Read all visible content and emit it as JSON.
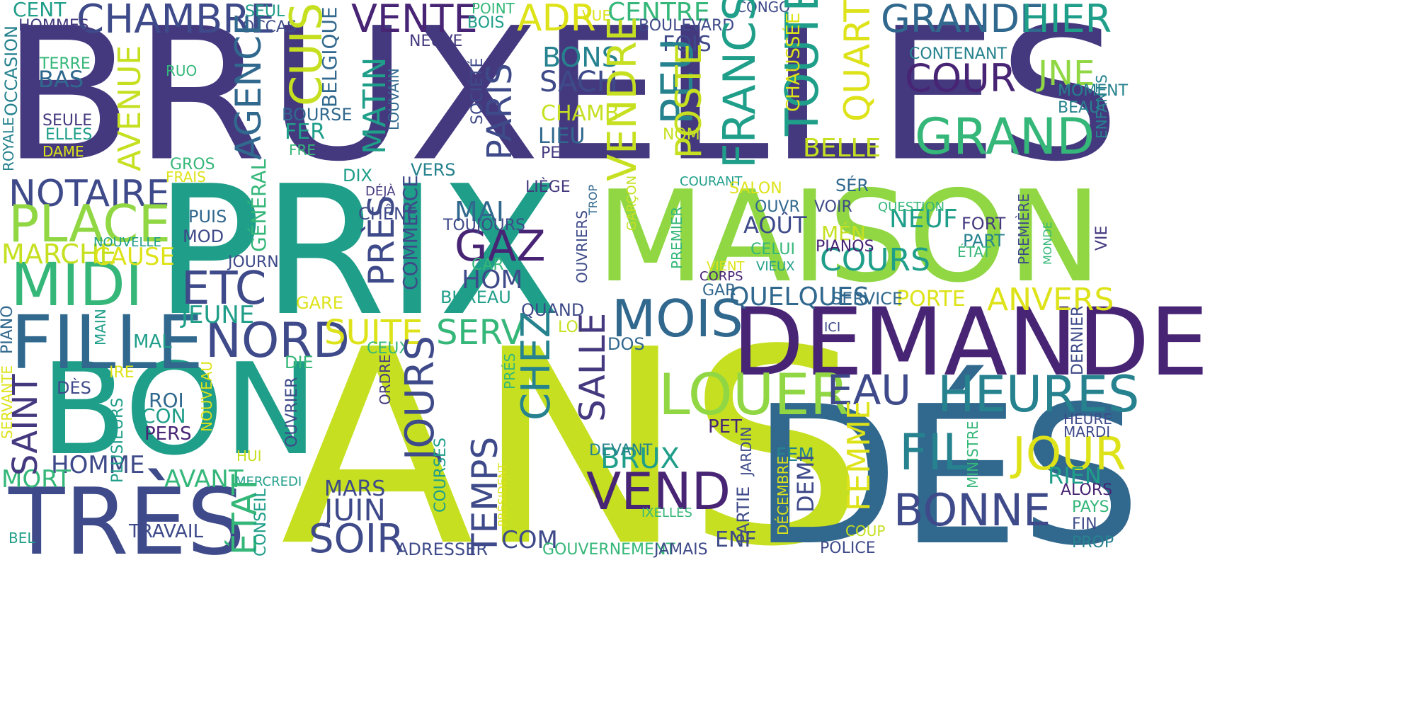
{
  "palette": {
    "indigo": "#44397f",
    "navy": "#3e4a89",
    "blue": "#31688e",
    "teal": "#26828e",
    "sea": "#1f9e89",
    "green": "#35b779",
    "lime": "#90d743",
    "yellow": "#c6e021",
    "gold": "#dde318",
    "purple": "#482475",
    "background": "#ffffff"
  },
  "words": [
    {
      "text": "BRUXELLES",
      "color": "indigo"
    },
    {
      "text": "PRIX",
      "color": "sea"
    },
    {
      "text": "ANS",
      "color": "yellow"
    },
    {
      "text": "MAISON",
      "color": "lime"
    },
    {
      "text": "DÉS",
      "color": "blue"
    },
    {
      "text": "DEMANDE",
      "color": "purple"
    },
    {
      "text": "BON",
      "color": "sea"
    },
    {
      "text": "TRÈS",
      "color": "navy"
    },
    {
      "text": "FILLE",
      "color": "blue"
    },
    {
      "text": "MIDI",
      "color": "green"
    },
    {
      "text": "NOTAIRE",
      "color": "navy"
    },
    {
      "text": "PLACE",
      "color": "lime"
    },
    {
      "text": "CHAMBRE",
      "color": "navy"
    },
    {
      "text": "VENTE",
      "color": "purple"
    },
    {
      "text": "GRANDE",
      "color": "blue"
    },
    {
      "text": "HIER",
      "color": "sea"
    },
    {
      "text": "GRAND",
      "color": "green"
    },
    {
      "text": "COUR",
      "color": "purple"
    },
    {
      "text": "JNE",
      "color": "lime"
    },
    {
      "text": "LOUER",
      "color": "lime"
    },
    {
      "text": "HEURES",
      "color": "teal"
    },
    {
      "text": "BONNE",
      "color": "navy"
    },
    {
      "text": "JOUR",
      "color": "gold"
    },
    {
      "text": "FIL",
      "color": "teal"
    },
    {
      "text": "VEND",
      "color": "purple"
    },
    {
      "text": "MOIS",
      "color": "blue"
    },
    {
      "text": "NORD",
      "color": "navy"
    },
    {
      "text": "SUITE",
      "color": "gold"
    },
    {
      "text": "SERV",
      "color": "green"
    },
    {
      "text": "GAZ",
      "color": "purple"
    },
    {
      "text": "ETC",
      "color": "navy"
    },
    {
      "text": "EAU",
      "color": "navy"
    },
    {
      "text": "SOIR",
      "color": "navy"
    },
    {
      "text": "JUIN",
      "color": "navy"
    },
    {
      "text": "ANVERS",
      "color": "gold"
    },
    {
      "text": "QUELQUES",
      "color": "blue"
    },
    {
      "text": "ADR",
      "color": "gold"
    },
    {
      "text": "CENTRE",
      "color": "green"
    },
    {
      "text": "MARCHÉ",
      "color": "yellow"
    },
    {
      "text": "CAUSE",
      "color": "gold"
    },
    {
      "text": "JEUNE",
      "color": "sea"
    },
    {
      "text": "HOMME",
      "color": "navy"
    },
    {
      "text": "MORT",
      "color": "green"
    },
    {
      "text": "AVANT",
      "color": "green"
    },
    {
      "text": "MARS",
      "color": "navy"
    },
    {
      "text": "COM",
      "color": "navy"
    },
    {
      "text": "BRUX",
      "color": "sea"
    },
    {
      "text": "COURS",
      "color": "sea"
    },
    {
      "text": "NEUF",
      "color": "sea"
    },
    {
      "text": "AOÛT",
      "color": "navy"
    },
    {
      "text": "HOM",
      "color": "navy"
    },
    {
      "text": "MAI",
      "color": "blue"
    },
    {
      "text": "BONS",
      "color": "teal"
    },
    {
      "text": "SACH",
      "color": "navy"
    },
    {
      "text": "BELLE",
      "color": "yellow"
    },
    {
      "text": "RIEN",
      "color": "sea"
    },
    {
      "text": "PORTE",
      "color": "gold"
    },
    {
      "text": "SERVICE",
      "color": "blue"
    },
    {
      "text": "CENT",
      "color": "sea"
    },
    {
      "text": "HOMMES",
      "color": "indigo"
    },
    {
      "text": "SEUL",
      "color": "sea"
    },
    {
      "text": "OCCAS",
      "color": "navy"
    },
    {
      "text": "POINT",
      "color": "green"
    },
    {
      "text": "BOIS",
      "color": "sea"
    },
    {
      "text": "VUE",
      "color": "gold"
    },
    {
      "text": "CONGO",
      "color": "navy"
    },
    {
      "text": "BOULEVARD",
      "color": "navy"
    },
    {
      "text": "FOIS",
      "color": "navy"
    },
    {
      "text": "NEUVE",
      "color": "indigo"
    },
    {
      "text": "TERRE",
      "color": "green"
    },
    {
      "text": "BAS",
      "color": "blue"
    },
    {
      "text": "RUO",
      "color": "green"
    },
    {
      "text": "SEULE",
      "color": "indigo"
    },
    {
      "text": "ELLES",
      "color": "sea"
    },
    {
      "text": "DAME",
      "color": "gold"
    },
    {
      "text": "BOURSE",
      "color": "blue"
    },
    {
      "text": "FER",
      "color": "sea"
    },
    {
      "text": "FRE",
      "color": "green"
    },
    {
      "text": "GROS",
      "color": "green"
    },
    {
      "text": "FRAIS",
      "color": "gold"
    },
    {
      "text": "DIX",
      "color": "sea"
    },
    {
      "text": "VERS",
      "color": "teal"
    },
    {
      "text": "DÉJÀ",
      "color": "indigo"
    },
    {
      "text": "LIÈGE",
      "color": "indigo"
    },
    {
      "text": "CHAMB",
      "color": "yellow"
    },
    {
      "text": "LIEU",
      "color": "blue"
    },
    {
      "text": "PETITE",
      "color": "indigo"
    },
    {
      "text": "NOM",
      "color": "yellow"
    },
    {
      "text": "CONTENANT",
      "color": "teal"
    },
    {
      "text": "MOMENT",
      "color": "teal"
    },
    {
      "text": "BEAU",
      "color": "teal"
    },
    {
      "text": "COURANT",
      "color": "sea"
    },
    {
      "text": "SALON",
      "color": "gold"
    },
    {
      "text": "SÉR",
      "color": "blue"
    },
    {
      "text": "OUVR",
      "color": "blue"
    },
    {
      "text": "VOIR",
      "color": "navy"
    },
    {
      "text": "QUESTION",
      "color": "green"
    },
    {
      "text": "FORT",
      "color": "indigo"
    },
    {
      "text": "PART",
      "color": "teal"
    },
    {
      "text": "ÉTAT",
      "color": "green"
    },
    {
      "text": "MÉN",
      "color": "yellow"
    },
    {
      "text": "CELUI",
      "color": "green"
    },
    {
      "text": "PIANOS",
      "color": "purple"
    },
    {
      "text": "VIEUX",
      "color": "sea"
    },
    {
      "text": "CORPS",
      "color": "purple"
    },
    {
      "text": "VIENT",
      "color": "gold"
    },
    {
      "text": "GAR",
      "color": "blue"
    },
    {
      "text": "PUIS",
      "color": "blue"
    },
    {
      "text": "MOD",
      "color": "navy"
    },
    {
      "text": "NOUVELLE",
      "color": "sea"
    },
    {
      "text": "JOURN",
      "color": "navy"
    },
    {
      "text": "CHÊNE",
      "color": "navy"
    },
    {
      "text": "TOUJOURS",
      "color": "navy"
    },
    {
      "text": "CAR",
      "color": "green"
    },
    {
      "text": "BUREAU",
      "color": "sea"
    },
    {
      "text": "QUAND",
      "color": "navy"
    },
    {
      "text": "LOI",
      "color": "yellow"
    },
    {
      "text": "DOS",
      "color": "blue"
    },
    {
      "text": "GARE",
      "color": "gold"
    },
    {
      "text": "MAL",
      "color": "sea"
    },
    {
      "text": "CEUX",
      "color": "green"
    },
    {
      "text": "DIE",
      "color": "green"
    },
    {
      "text": "IRE",
      "color": "gold"
    },
    {
      "text": "DÈS",
      "color": "navy"
    },
    {
      "text": "ROI",
      "color": "blue"
    },
    {
      "text": "CON",
      "color": "sea"
    },
    {
      "text": "PERS",
      "color": "purple"
    },
    {
      "text": "HUI",
      "color": "yellow"
    },
    {
      "text": "MERCREDI",
      "color": "sea"
    },
    {
      "text": "TRAVAIL",
      "color": "navy"
    },
    {
      "text": "BEL",
      "color": "sea"
    },
    {
      "text": "ADRESSER",
      "color": "navy"
    },
    {
      "text": "GOUVERNEMENT",
      "color": "green"
    },
    {
      "text": "JAMAIS",
      "color": "navy"
    },
    {
      "text": "ENF",
      "color": "navy"
    },
    {
      "text": "POLICE",
      "color": "navy"
    },
    {
      "text": "DEVANT",
      "color": "teal"
    },
    {
      "text": "PET",
      "color": "purple"
    },
    {
      "text": "FEM",
      "color": "teal"
    },
    {
      "text": "COUP",
      "color": "yellow"
    },
    {
      "text": "ICI",
      "color": "navy"
    },
    {
      "text": "HEURE",
      "color": "navy"
    },
    {
      "text": "MARDI",
      "color": "navy"
    },
    {
      "text": "ALORS",
      "color": "purple"
    },
    {
      "text": "PAYS",
      "color": "green"
    },
    {
      "text": "FIN",
      "color": "navy"
    },
    {
      "text": "PROP",
      "color": "teal"
    },
    {
      "text": "IXELLES",
      "color": "green"
    },
    {
      "text": "OCCASION",
      "color": "teal"
    },
    {
      "text": "ROYALE",
      "color": "teal"
    },
    {
      "text": "AVENUE",
      "color": "yellow"
    },
    {
      "text": "CUIS",
      "color": "yellow"
    },
    {
      "text": "BELGIQUE",
      "color": "blue"
    },
    {
      "text": "AGENCE",
      "color": "blue"
    },
    {
      "text": "MATIN",
      "color": "sea"
    },
    {
      "text": "LOUVAIN",
      "color": "blue"
    },
    {
      "text": "SOCIÉTÉ",
      "color": "navy"
    },
    {
      "text": "PARIS",
      "color": "navy"
    },
    {
      "text": "VENDRE",
      "color": "yellow"
    },
    {
      "text": "PEU",
      "color": "teal"
    },
    {
      "text": "POSTE",
      "color": "yellow"
    },
    {
      "text": "FRANCS",
      "color": "sea"
    },
    {
      "text": "TOUTE",
      "color": "sea"
    },
    {
      "text": "CHAUSSÉE",
      "color": "gold"
    },
    {
      "text": "QUART",
      "color": "gold"
    },
    {
      "text": "ENFANTS",
      "color": "teal"
    },
    {
      "text": "GÉNÉRAL",
      "color": "green"
    },
    {
      "text": "PRÈS",
      "color": "navy"
    },
    {
      "text": "COMMERCE",
      "color": "navy"
    },
    {
      "text": "OUVRIERS",
      "color": "navy"
    },
    {
      "text": "TROP",
      "color": "blue"
    },
    {
      "text": "GARÇON",
      "color": "yellow"
    },
    {
      "text": "PREMIER",
      "color": "green"
    },
    {
      "text": "PREMIÈRE",
      "color": "navy"
    },
    {
      "text": "MONDE",
      "color": "green"
    },
    {
      "text": "VIE",
      "color": "indigo"
    },
    {
      "text": "PIANO",
      "color": "blue"
    },
    {
      "text": "MAIN",
      "color": "sea"
    },
    {
      "text": "SAINT",
      "color": "indigo"
    },
    {
      "text": "SERVANTE",
      "color": "gold"
    },
    {
      "text": "PLUSIEURS",
      "color": "sea"
    },
    {
      "text": "NOUVEAU",
      "color": "gold"
    },
    {
      "text": "OUVRIER",
      "color": "navy"
    },
    {
      "text": "ORDRE",
      "color": "indigo"
    },
    {
      "text": "PRÉS",
      "color": "green"
    },
    {
      "text": "JOURS",
      "color": "navy"
    },
    {
      "text": "CHEZ",
      "color": "teal"
    },
    {
      "text": "SALLE",
      "color": "indigo"
    },
    {
      "text": "TEMPS",
      "color": "navy"
    },
    {
      "text": "COURSES",
      "color": "sea"
    },
    {
      "text": "PRÉSIDENT",
      "color": "gold"
    },
    {
      "text": "ÉTAT",
      "color": "green"
    },
    {
      "text": "CONSEIL",
      "color": "sea"
    },
    {
      "text": "JARDIN",
      "color": "navy"
    },
    {
      "text": "PARTIE",
      "color": "navy"
    },
    {
      "text": "DÉCEMBRE",
      "color": "gold"
    },
    {
      "text": "DEMI",
      "color": "navy"
    },
    {
      "text": "FEMME",
      "color": "gold"
    },
    {
      "text": "MINISTRE",
      "color": "green"
    },
    {
      "text": "DERNIER",
      "color": "navy"
    }
  ]
}
